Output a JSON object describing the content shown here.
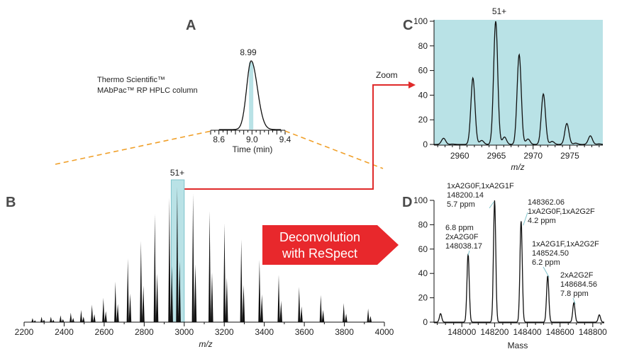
{
  "panels": {
    "a": {
      "letter": "A",
      "column_line1": "Thermo Scientific™",
      "column_line2": "MAbPac™ RP HPLC column",
      "peak_label": "8.99",
      "xlabel": "Time (min)",
      "ticks": [
        "8.6",
        "9.0",
        "9.4"
      ],
      "chart_data": {
        "type": "line",
        "title": "",
        "xlabel": "Time (min)",
        "ylabel": "",
        "xlim": [
          8.5,
          9.4
        ],
        "peak_time": 8.99,
        "highlight_time": 8.99
      }
    },
    "b": {
      "letter": "B",
      "box_label": "51+",
      "xlabel": "m/z",
      "ticks": [
        "2200",
        "2400",
        "2600",
        "2800",
        "3000",
        "3200",
        "3400",
        "3600",
        "3800",
        "4000"
      ],
      "chart_data": {
        "type": "bar",
        "title": "",
        "xlabel": "m/z",
        "ylabel": "",
        "xlim": [
          2200,
          4000
        ],
        "highlight_range": [
          2935,
          3000
        ],
        "peaks": [
          {
            "x": 2242,
            "y": 3
          },
          {
            "x": 2287,
            "y": 4
          },
          {
            "x": 2334,
            "y": 4
          },
          {
            "x": 2382,
            "y": 5
          },
          {
            "x": 2433,
            "y": 7
          },
          {
            "x": 2485,
            "y": 9
          },
          {
            "x": 2539,
            "y": 13
          },
          {
            "x": 2596,
            "y": 18
          },
          {
            "x": 2656,
            "y": 30
          },
          {
            "x": 2718,
            "y": 47
          },
          {
            "x": 2784,
            "y": 60
          },
          {
            "x": 2853,
            "y": 80
          },
          {
            "x": 2926,
            "y": 92
          },
          {
            "x": 2965,
            "y": 100
          },
          {
            "x": 3044,
            "y": 95
          },
          {
            "x": 3127,
            "y": 82
          },
          {
            "x": 3201,
            "y": 73
          },
          {
            "x": 3285,
            "y": 61
          },
          {
            "x": 3376,
            "y": 46
          },
          {
            "x": 3472,
            "y": 35
          },
          {
            "x": 3574,
            "y": 26
          },
          {
            "x": 3682,
            "y": 20
          },
          {
            "x": 3797,
            "y": 14
          },
          {
            "x": 3919,
            "y": 10
          }
        ]
      }
    },
    "c": {
      "letter": "C",
      "charge_label": "51+",
      "xlabel": "m/z",
      "yticks": [
        "0",
        "20",
        "40",
        "60",
        "80",
        "100"
      ],
      "xticks": [
        "2960",
        "2965",
        "2970",
        "2975"
      ],
      "chart_data": {
        "type": "line",
        "title": "",
        "xlabel": "m/z",
        "ylabel": "",
        "xlim": [
          2956.5,
          2979.5
        ],
        "ylim": [
          0,
          100
        ],
        "peaks": [
          {
            "x": 2957.8,
            "y": 5
          },
          {
            "x": 2961.8,
            "y": 54
          },
          {
            "x": 2964.9,
            "y": 100
          },
          {
            "x": 2968.1,
            "y": 73
          },
          {
            "x": 2971.4,
            "y": 41
          },
          {
            "x": 2974.6,
            "y": 17
          },
          {
            "x": 2977.8,
            "y": 7
          }
        ]
      }
    },
    "d": {
      "letter": "D",
      "xlabel": "Mass",
      "yticks": [
        "0",
        "20",
        "40",
        "60",
        "80",
        "100"
      ],
      "xticks": [
        "148000",
        "148200",
        "148400",
        "148600",
        "148800"
      ],
      "annotations": [
        {
          "line1": "1xA2G0F,1xA2G1F",
          "line2": "148200.14",
          "line3": "5.7 ppm"
        },
        {
          "line1": "148362.06",
          "line2": "1xA2G0F,1xA2G2F",
          "line3": "4.2 ppm"
        },
        {
          "line1": "6.8 ppm",
          "line2": "2xA2G0F",
          "line3": "148038.17"
        },
        {
          "line1": "1xA2G1F,1xA2G2F",
          "line2": "148524.50",
          "line3": "6.2 ppm"
        },
        {
          "line1": "2xA2G2F",
          "line2": "148684.56",
          "line3": "7.8 ppm"
        }
      ],
      "chart_data": {
        "type": "line",
        "title": "",
        "xlabel": "Mass",
        "ylabel": "",
        "xlim": [
          147830,
          148870
        ],
        "ylim": [
          0,
          100
        ],
        "peaks": [
          {
            "x": 147870,
            "y": 7
          },
          {
            "x": 148038.17,
            "y": 56
          },
          {
            "x": 148200.14,
            "y": 100
          },
          {
            "x": 148362.06,
            "y": 83
          },
          {
            "x": 148524.5,
            "y": 38
          },
          {
            "x": 148684.56,
            "y": 16
          },
          {
            "x": 148840,
            "y": 6
          }
        ]
      }
    }
  },
  "zoom_label": "Zoom",
  "deconvolution": {
    "line1": "Deconvolution",
    "line2": "with ReSpect"
  },
  "colors": {
    "trace": "#111111",
    "highlight": "#b9e2e6",
    "highlight_stroke": "#7fc4cc",
    "arrow_red": "#e02a2a",
    "dashed_orange": "#f0a02a",
    "decon_fill": "#e8282c"
  }
}
